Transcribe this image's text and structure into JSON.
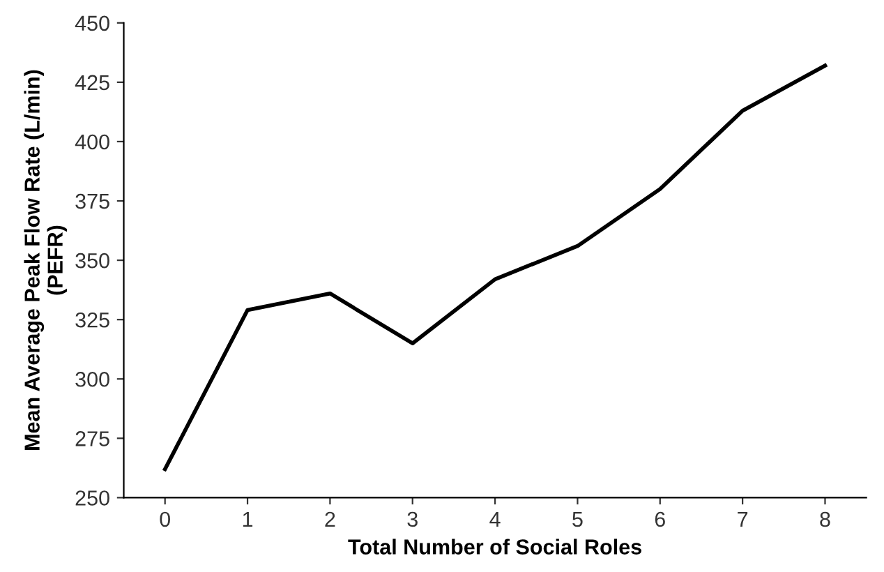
{
  "chart_data": {
    "type": "line",
    "xlabel": "Total Number of Social Roles",
    "ylabel": "Mean Average Peak Flow Rate (L/min)\n(PEFR)",
    "categories": [
      "0",
      "1",
      "2",
      "3",
      "4",
      "5",
      "6",
      "7",
      "8"
    ],
    "series": [
      {
        "color": "#000000",
        "values": [
          262,
          329,
          336,
          315,
          342,
          356,
          380,
          413,
          432
        ]
      }
    ],
    "ylim": [
      250,
      450
    ],
    "yticks": [
      250,
      275,
      300,
      325,
      350,
      375,
      400,
      425,
      450
    ],
    "grid": false,
    "marker": "none",
    "line_style": "solid"
  }
}
